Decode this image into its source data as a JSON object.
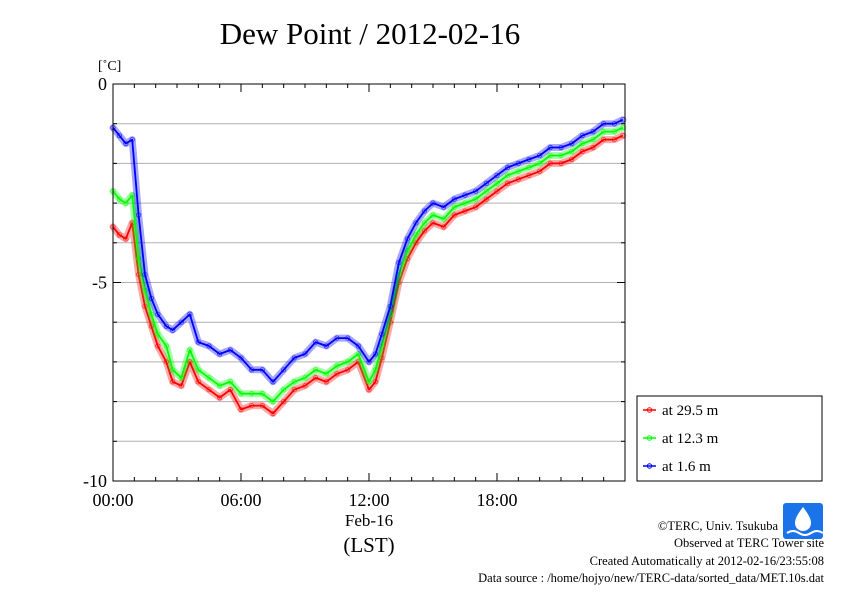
{
  "chart_data": {
    "type": "line",
    "title": "Dew Point / 2012-02-16",
    "unit": "[˚C]",
    "xlabel_date": "Feb-16",
    "xlabel": "(LST)",
    "xlim": [
      0,
      24
    ],
    "ylim": [
      -10,
      0
    ],
    "x_ticks": [
      {
        "value": 0,
        "label": "00:00"
      },
      {
        "value": 6,
        "label": "06:00"
      },
      {
        "value": 12,
        "label": "12:00"
      },
      {
        "value": 18,
        "label": "18:00"
      }
    ],
    "y_ticks": [
      {
        "value": 0,
        "label": "0"
      },
      {
        "value": -5,
        "label": "-5"
      },
      {
        "value": -10,
        "label": "-10"
      }
    ],
    "grid": true,
    "legend_position": "bottom-right-outside",
    "series": [
      {
        "name": "at 29.5 m",
        "color": "#ff0000",
        "x": [
          0,
          0.3,
          0.6,
          0.9,
          1.2,
          1.5,
          1.8,
          2.1,
          2.5,
          2.8,
          3.2,
          3.6,
          4.0,
          4.5,
          5.0,
          5.5,
          6.0,
          6.5,
          7.0,
          7.5,
          8.0,
          8.5,
          9.0,
          9.5,
          10.0,
          10.5,
          11.0,
          11.5,
          12.0,
          12.3,
          12.6,
          13.0,
          13.4,
          13.8,
          14.2,
          14.6,
          15.0,
          15.5,
          16.0,
          16.5,
          17.0,
          17.5,
          18.0,
          18.5,
          19.0,
          19.5,
          20.0,
          20.5,
          21.0,
          21.5,
          22.0,
          22.5,
          23.0,
          23.5,
          23.9
        ],
        "y": [
          -3.6,
          -3.8,
          -3.9,
          -3.5,
          -4.8,
          -5.6,
          -6.1,
          -6.6,
          -7.0,
          -7.5,
          -7.6,
          -7.0,
          -7.5,
          -7.7,
          -7.9,
          -7.7,
          -8.2,
          -8.1,
          -8.1,
          -8.3,
          -8.0,
          -7.7,
          -7.6,
          -7.4,
          -7.5,
          -7.3,
          -7.2,
          -7.0,
          -7.7,
          -7.5,
          -6.9,
          -6.0,
          -5.0,
          -4.4,
          -4.0,
          -3.7,
          -3.5,
          -3.6,
          -3.3,
          -3.2,
          -3.1,
          -2.9,
          -2.7,
          -2.5,
          -2.4,
          -2.3,
          -2.2,
          -2.0,
          -2.0,
          -1.9,
          -1.7,
          -1.6,
          -1.4,
          -1.4,
          -1.3
        ]
      },
      {
        "name": "at 12.3 m",
        "color": "#00ff00",
        "x": [
          0,
          0.3,
          0.6,
          0.9,
          1.2,
          1.5,
          1.8,
          2.1,
          2.5,
          2.8,
          3.2,
          3.6,
          4.0,
          4.5,
          5.0,
          5.5,
          6.0,
          6.5,
          7.0,
          7.5,
          8.0,
          8.5,
          9.0,
          9.5,
          10.0,
          10.5,
          11.0,
          11.5,
          12.0,
          12.3,
          12.6,
          13.0,
          13.4,
          13.8,
          14.2,
          14.6,
          15.0,
          15.5,
          16.0,
          16.5,
          17.0,
          17.5,
          18.0,
          18.5,
          19.0,
          19.5,
          20.0,
          20.5,
          21.0,
          21.5,
          22.0,
          22.5,
          23.0,
          23.5,
          23.9
        ],
        "y": [
          -2.7,
          -2.9,
          -3.0,
          -2.8,
          -4.4,
          -5.2,
          -5.8,
          -6.3,
          -6.6,
          -7.2,
          -7.4,
          -6.7,
          -7.2,
          -7.4,
          -7.6,
          -7.5,
          -7.8,
          -7.8,
          -7.8,
          -8.0,
          -7.7,
          -7.5,
          -7.4,
          -7.2,
          -7.3,
          -7.1,
          -7.0,
          -6.8,
          -7.5,
          -7.2,
          -6.6,
          -5.8,
          -4.8,
          -4.2,
          -3.8,
          -3.5,
          -3.3,
          -3.4,
          -3.1,
          -3.0,
          -2.9,
          -2.7,
          -2.5,
          -2.3,
          -2.2,
          -2.1,
          -2.0,
          -1.8,
          -1.8,
          -1.7,
          -1.5,
          -1.4,
          -1.2,
          -1.2,
          -1.1
        ]
      },
      {
        "name": "at 1.6 m",
        "color": "#0000ff",
        "x": [
          0,
          0.3,
          0.6,
          0.9,
          1.2,
          1.5,
          1.8,
          2.1,
          2.5,
          2.8,
          3.2,
          3.6,
          4.0,
          4.5,
          5.0,
          5.5,
          6.0,
          6.5,
          7.0,
          7.5,
          8.0,
          8.5,
          9.0,
          9.5,
          10.0,
          10.5,
          11.0,
          11.5,
          12.0,
          12.3,
          12.6,
          13.0,
          13.4,
          13.8,
          14.2,
          14.6,
          15.0,
          15.5,
          16.0,
          16.5,
          17.0,
          17.5,
          18.0,
          18.5,
          19.0,
          19.5,
          20.0,
          20.5,
          21.0,
          21.5,
          22.0,
          22.5,
          23.0,
          23.5,
          23.9
        ],
        "y": [
          -1.1,
          -1.3,
          -1.5,
          -1.4,
          -3.3,
          -4.8,
          -5.4,
          -5.8,
          -6.1,
          -6.2,
          -6.0,
          -5.8,
          -6.5,
          -6.6,
          -6.8,
          -6.7,
          -6.9,
          -7.2,
          -7.2,
          -7.5,
          -7.2,
          -6.9,
          -6.8,
          -6.5,
          -6.6,
          -6.4,
          -6.4,
          -6.6,
          -7.0,
          -6.8,
          -6.3,
          -5.6,
          -4.5,
          -3.9,
          -3.5,
          -3.2,
          -3.0,
          -3.1,
          -2.9,
          -2.8,
          -2.7,
          -2.5,
          -2.3,
          -2.1,
          -2.0,
          -1.9,
          -1.8,
          -1.6,
          -1.6,
          -1.5,
          -1.3,
          -1.2,
          -1.0,
          -1.0,
          -0.9
        ]
      }
    ]
  },
  "credits": {
    "copyright": "©TERC, Univ. Tsukuba",
    "observed": "Observed at TERC Tower site",
    "created": "Created Automatically at 2012-02-16/23:55:08",
    "source": "Data source : /home/hojyo/new/TERC-data/sorted_data/MET.10s.dat"
  },
  "logo": {
    "icon": "terc-logo-icon",
    "color": "#1a73e8"
  }
}
